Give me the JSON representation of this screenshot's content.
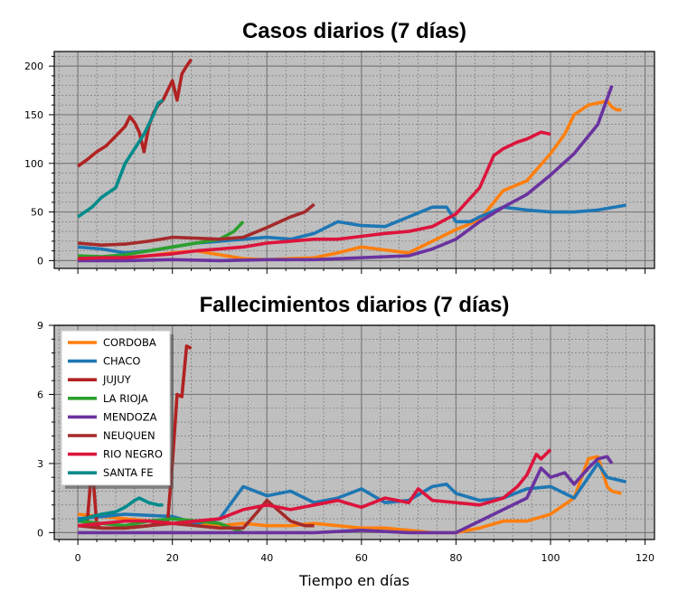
{
  "colors": {
    "CORDOBA": "#ff7f0e",
    "CHACO": "#1f77b4",
    "JUJUY": "#b22222",
    "LA RIOJA": "#2ca02c",
    "MENDOZA": "#6a329f",
    "NEUQUEN": "#a52a2a",
    "RIO NEGRO": "#dc143c",
    "SANTA FE": "#008b8b",
    "plot_bg": "#bfbfbf"
  },
  "chart_data": [
    {
      "type": "line",
      "title": "Casos diarios (7 días)",
      "xlabel": "",
      "ylabel": "",
      "xlim": [
        -5,
        122
      ],
      "ylim": [
        -8,
        215
      ],
      "xticks": [
        0,
        20,
        40,
        60,
        80,
        100,
        120
      ],
      "yticks": [
        0,
        50,
        100,
        150,
        200
      ],
      "ytick_labels": [
        "0",
        "50",
        "100",
        "150",
        "200"
      ],
      "show_xtick_labels": false,
      "grid": true,
      "series": [
        {
          "name": "CORDOBA",
          "x": [
            0,
            5,
            10,
            15,
            20,
            25,
            30,
            35,
            40,
            45,
            50,
            55,
            60,
            65,
            70,
            75,
            80,
            85,
            90,
            95,
            100,
            103,
            105,
            108,
            110,
            112,
            113,
            114,
            115
          ],
          "y": [
            4,
            3,
            3,
            5,
            8,
            10,
            6,
            2,
            1,
            2,
            3,
            8,
            14,
            11,
            8,
            20,
            32,
            42,
            72,
            82,
            110,
            130,
            150,
            160,
            162,
            164,
            158,
            155,
            155
          ]
        },
        {
          "name": "CHACO",
          "x": [
            0,
            5,
            10,
            15,
            20,
            25,
            30,
            35,
            40,
            45,
            50,
            55,
            60,
            65,
            70,
            75,
            78,
            80,
            83,
            85,
            90,
            95,
            100,
            105,
            110,
            116
          ],
          "y": [
            14,
            12,
            8,
            10,
            14,
            18,
            20,
            22,
            24,
            22,
            28,
            40,
            36,
            35,
            45,
            55,
            55,
            40,
            40,
            45,
            55,
            52,
            50,
            50,
            52,
            57
          ]
        },
        {
          "name": "JUJUY",
          "x": [
            0,
            2,
            4,
            6,
            8,
            10,
            11,
            12,
            13,
            14,
            15,
            16,
            17,
            18,
            19,
            20,
            21,
            22,
            23,
            24
          ],
          "y": [
            97,
            104,
            112,
            118,
            128,
            138,
            148,
            142,
            132,
            112,
            138,
            152,
            160,
            165,
            175,
            185,
            165,
            192,
            200,
            207
          ]
        },
        {
          "name": "LA RIOJA",
          "x": [
            0,
            5,
            10,
            15,
            20,
            25,
            30,
            33,
            35
          ],
          "y": [
            5,
            4,
            6,
            10,
            14,
            18,
            22,
            30,
            40
          ]
        },
        {
          "name": "MENDOZA",
          "x": [
            0,
            10,
            20,
            30,
            40,
            50,
            60,
            70,
            75,
            80,
            85,
            90,
            95,
            100,
            105,
            110,
            113
          ],
          "y": [
            0,
            0,
            1,
            0,
            1,
            1,
            3,
            5,
            12,
            22,
            40,
            55,
            68,
            88,
            110,
            140,
            180
          ]
        },
        {
          "name": "NEUQUEN",
          "x": [
            0,
            5,
            10,
            15,
            20,
            25,
            30,
            35,
            40,
            45,
            48,
            50
          ],
          "y": [
            18,
            16,
            17,
            20,
            24,
            23,
            22,
            24,
            34,
            45,
            50,
            58
          ]
        },
        {
          "name": "RIO NEGRO",
          "x": [
            0,
            5,
            10,
            15,
            20,
            25,
            30,
            35,
            40,
            45,
            50,
            55,
            60,
            65,
            70,
            75,
            80,
            85,
            88,
            90,
            93,
            95,
            98,
            100
          ],
          "y": [
            2,
            3,
            3,
            5,
            7,
            10,
            12,
            14,
            18,
            20,
            22,
            22,
            25,
            28,
            30,
            35,
            48,
            75,
            108,
            115,
            122,
            125,
            132,
            130
          ]
        },
        {
          "name": "SANTA FE",
          "x": [
            0,
            3,
            5,
            8,
            10,
            12,
            14,
            16,
            17,
            18
          ],
          "y": [
            45,
            55,
            65,
            75,
            100,
            115,
            130,
            150,
            162,
            165
          ]
        }
      ]
    },
    {
      "type": "line",
      "title": "Fallecimientos diarios (7 días)",
      "xlabel": "Tiempo en días",
      "ylabel": "",
      "xlim": [
        -5,
        122
      ],
      "ylim": [
        -0.3,
        9
      ],
      "xticks": [
        0,
        20,
        40,
        60,
        80,
        100,
        120
      ],
      "xtick_labels": [
        "0",
        "20",
        "40",
        "60",
        "80",
        "100",
        "120"
      ],
      "yticks": [
        0,
        3,
        6,
        9
      ],
      "ytick_labels": [
        "0",
        "3",
        "6",
        "9"
      ],
      "grid": true,
      "legend": "top-left",
      "series": [
        {
          "name": "CORDOBA",
          "x": [
            0,
            5,
            10,
            15,
            20,
            25,
            30,
            35,
            40,
            45,
            50,
            55,
            60,
            65,
            70,
            75,
            80,
            85,
            90,
            95,
            100,
            105,
            108,
            110,
            112,
            113,
            115
          ],
          "y": [
            0.8,
            0.7,
            0.6,
            0.5,
            0.4,
            0.4,
            0.3,
            0.4,
            0.3,
            0.3,
            0.4,
            0.3,
            0.2,
            0.2,
            0.1,
            0.0,
            0.0,
            0.2,
            0.5,
            0.5,
            0.8,
            1.5,
            3.2,
            3.3,
            2.0,
            1.8,
            1.7
          ]
        },
        {
          "name": "CHACO",
          "x": [
            0,
            10,
            20,
            25,
            30,
            35,
            40,
            45,
            50,
            55,
            60,
            65,
            70,
            75,
            78,
            80,
            85,
            90,
            95,
            100,
            105,
            110,
            112,
            116
          ],
          "y": [
            0.6,
            0.8,
            0.7,
            0.4,
            0.6,
            2.0,
            1.6,
            1.8,
            1.3,
            1.5,
            1.9,
            1.3,
            1.4,
            2.0,
            2.1,
            1.7,
            1.4,
            1.5,
            1.9,
            2.0,
            1.5,
            3.0,
            2.4,
            2.2
          ]
        },
        {
          "name": "JUJUY",
          "x": [
            0,
            2,
            3,
            4,
            5,
            10,
            15,
            19,
            20,
            21,
            22,
            23,
            24
          ],
          "y": [
            0.5,
            0.5,
            3.0,
            0.3,
            0.2,
            0.2,
            0.3,
            0.5,
            3.0,
            6.0,
            5.9,
            8.1,
            8.0
          ]
        },
        {
          "name": "LA RIOJA",
          "x": [
            0,
            5,
            10,
            15,
            20,
            25,
            30,
            35
          ],
          "y": [
            0.5,
            0.4,
            0.3,
            0.5,
            0.6,
            0.5,
            0.4,
            0.0
          ]
        },
        {
          "name": "MENDOZA",
          "x": [
            0,
            10,
            20,
            30,
            40,
            50,
            60,
            70,
            80,
            85,
            90,
            95,
            98,
            100,
            103,
            105,
            108,
            110,
            112,
            113
          ],
          "y": [
            0,
            0,
            0,
            0,
            0,
            0,
            0.1,
            0,
            0,
            0.5,
            1.0,
            1.5,
            2.8,
            2.4,
            2.6,
            2.1,
            2.8,
            3.2,
            3.3,
            3.0
          ]
        },
        {
          "name": "NEUQUEN",
          "x": [
            0,
            5,
            10,
            15,
            20,
            25,
            30,
            35,
            38,
            40,
            45,
            48,
            50
          ],
          "y": [
            0.3,
            0.2,
            0.2,
            0.3,
            0.4,
            0.3,
            0.2,
            0.2,
            0.9,
            1.4,
            0.5,
            0.3,
            0.3
          ]
        },
        {
          "name": "RIO NEGRO",
          "x": [
            0,
            5,
            10,
            15,
            20,
            25,
            30,
            35,
            40,
            45,
            50,
            55,
            60,
            65,
            70,
            72,
            75,
            80,
            85,
            90,
            93,
            95,
            97,
            98,
            100
          ],
          "y": [
            0.3,
            0.4,
            0.5,
            0.5,
            0.4,
            0.5,
            0.6,
            1.0,
            1.2,
            1.0,
            1.2,
            1.4,
            1.1,
            1.5,
            1.3,
            1.9,
            1.4,
            1.3,
            1.2,
            1.5,
            2.0,
            2.5,
            3.4,
            3.2,
            3.6
          ]
        },
        {
          "name": "SANTA FE",
          "x": [
            0,
            3,
            5,
            8,
            10,
            12,
            13,
            15,
            17,
            18
          ],
          "y": [
            0.5,
            0.7,
            0.8,
            0.9,
            1.1,
            1.4,
            1.5,
            1.3,
            1.2,
            1.2
          ]
        }
      ]
    }
  ]
}
